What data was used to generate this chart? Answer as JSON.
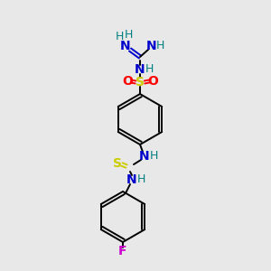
{
  "background_color": "#e8e8e8",
  "atom_colors": {
    "C": "#000000",
    "N": "#0000cc",
    "O": "#ff0000",
    "S_sulfonamide": "#cccc00",
    "S_thio": "#cccc00",
    "F": "#cc00cc",
    "H": "#008080"
  },
  "bond_color": "#000000",
  "ring_bond_color": "#000000"
}
